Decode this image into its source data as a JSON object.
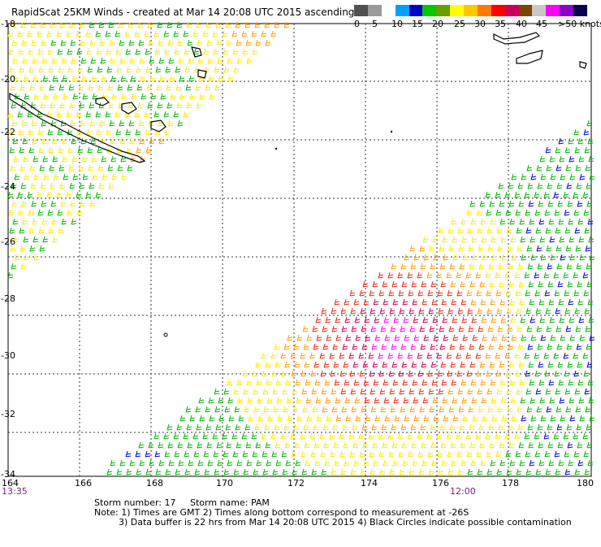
{
  "header": {
    "title": "RapidScat 25KM Winds - created at Mar 14 20:08 UTC 2015 ascending"
  },
  "legend": {
    "colors": [
      "#505050",
      "#9a9a9a",
      "#ffffff",
      "#00a0ff",
      "#0000c8",
      "#00c800",
      "#64a000",
      "#ffff00",
      "#ffc800",
      "#ff7800",
      "#ff0000",
      "#c8005a",
      "#7d4600",
      "#c8c8c8",
      "#ff00ff",
      "#8c00c8",
      "#0a0050"
    ],
    "labels": [
      "0",
      "5",
      "10",
      "15",
      "20",
      "25",
      "30",
      "35",
      "40",
      "45",
      ">50 knots"
    ]
  },
  "map": {
    "lat_labels": [
      "-18",
      "-20",
      "-22",
      "-24",
      "-26",
      "-28",
      "-30",
      "-32",
      "-34"
    ],
    "lon_labels": [
      "164",
      "166",
      "168",
      "170",
      "172",
      "174",
      "176",
      "178",
      "180"
    ],
    "time_labels": [
      "13:35",
      "12:00"
    ]
  },
  "notes": {
    "storm_number": "Storm number: 17",
    "storm_name": "Storm name: PAM",
    "line1": "Note: 1) Times are GMT  2) Times along bottom correspond to measurement at -26S",
    "line2": "3) Data buffer is 22 hrs from Mar 14 20:08 UTC 2015  4) Black Circles indicate possible contamination"
  }
}
